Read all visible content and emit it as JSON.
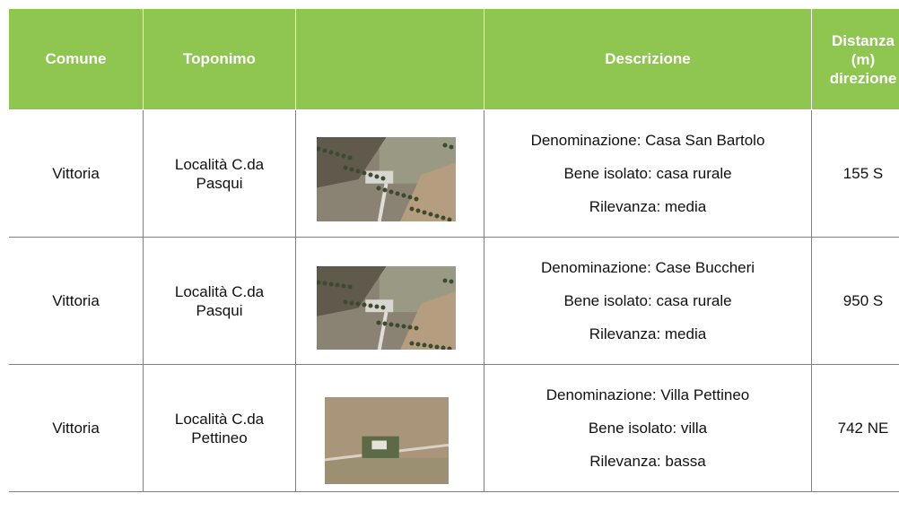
{
  "table": {
    "header": [
      "Comune",
      "Toponimo",
      "Descrizione",
      [
        "Distanza",
        "(m)",
        "direzione"
      ]
    ],
    "rows": [
      [
        "Vittoria",
        "Località C.da Pasqui",
        [
          "Denominazione: Casa San Bartolo",
          "Bene isolato: casa rurale",
          "Rilevanza: media"
        ],
        "155 S"
      ],
      [
        "Vittoria",
        "Località C.da Pasqui",
        [
          "Denominazione: Case Buccheri",
          "Bene isolato: casa rurale",
          "Rilevanza: media"
        ],
        "950 S"
      ],
      [
        "Vittoria",
        "Località C.da Pettineo",
        [
          "Denominazione: Villa Pettineo",
          "Bene isolato: villa",
          "Rilevanza: bassa"
        ],
        "742 NE"
      ]
    ]
  }
}
